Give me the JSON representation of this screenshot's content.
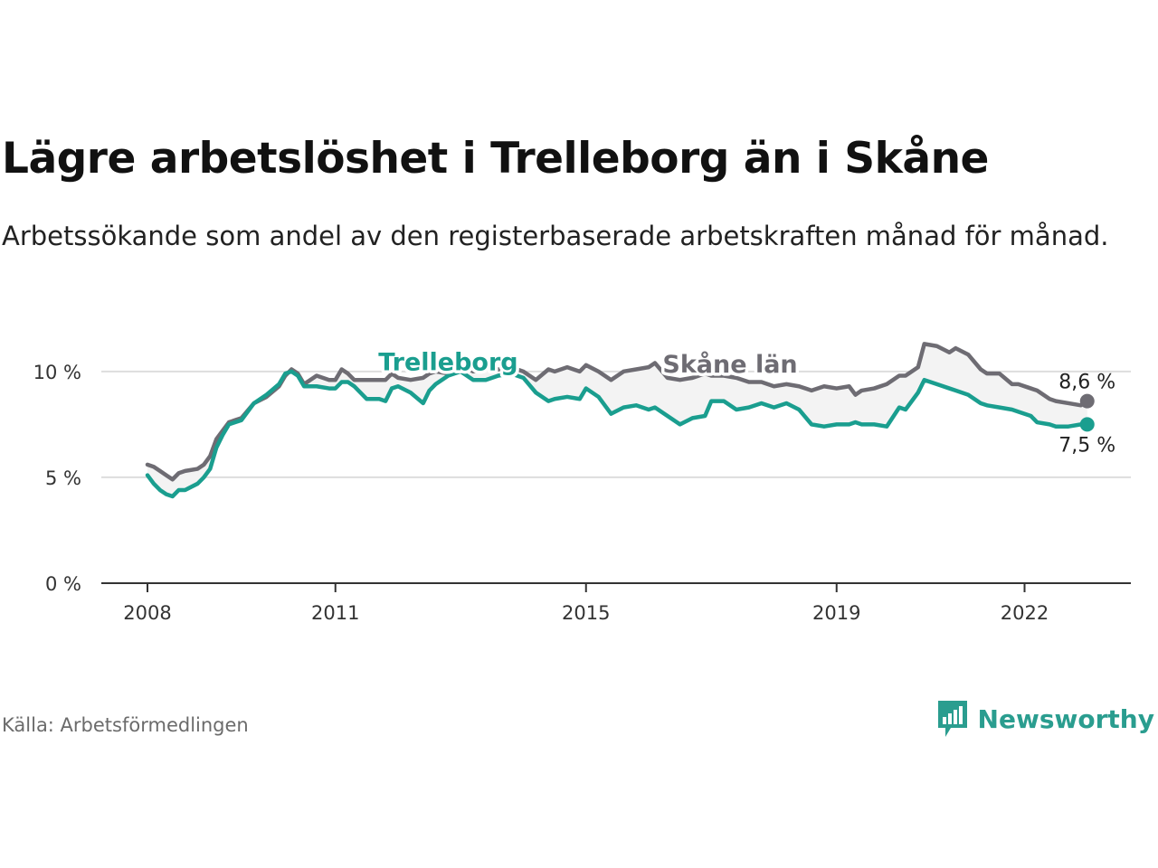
{
  "title": "Lägre arbetslöshet i Trelleborg än i Skåne",
  "subtitle": "Arbetssökande som andel av den registerbaserade arbetskraften månad för månad.",
  "source": "Källa: Arbetsförmedlingen",
  "brand": "Newsworthy",
  "colors": {
    "trelleborg": "#1a9e8f",
    "skane": "#6e6c73",
    "grid": "#dddddd",
    "axis": "#333333",
    "fill": "#f3f3f3"
  },
  "chart_data": {
    "type": "line",
    "ylim": [
      0,
      12
    ],
    "yticks": [
      0,
      5,
      10
    ],
    "ytick_labels": [
      "0 %",
      "5 %",
      "10 %"
    ],
    "xlim": [
      2008.0,
      2023.4
    ],
    "xticks": [
      2008,
      2011,
      2015,
      2019,
      2022
    ],
    "xtick_labels": [
      "2008",
      "2011",
      "2015",
      "2019",
      "2022"
    ],
    "series": [
      {
        "name": "Skåne län",
        "label": "Skåne län",
        "end_label": "8,6 %",
        "x": [
          2008.0,
          2008.1,
          2008.2,
          2008.3,
          2008.4,
          2008.5,
          2008.6,
          2008.8,
          2008.9,
          2009.0,
          2009.1,
          2009.2,
          2009.3,
          2009.4,
          2009.5,
          2009.7,
          2009.9,
          2010.1,
          2010.2,
          2010.3,
          2010.4,
          2010.5,
          2010.7,
          2010.9,
          2011.0,
          2011.1,
          2011.2,
          2011.3,
          2011.5,
          2011.7,
          2011.8,
          2011.9,
          2012.0,
          2012.2,
          2012.4,
          2012.5,
          2012.6,
          2012.8,
          2013.0,
          2013.2,
          2013.4,
          2013.6,
          2013.8,
          2014.0,
          2014.2,
          2014.4,
          2014.5,
          2014.7,
          2014.9,
          2015.0,
          2015.2,
          2015.4,
          2015.6,
          2015.8,
          2016.0,
          2016.1,
          2016.3,
          2016.5,
          2016.7,
          2016.9,
          2017.0,
          2017.2,
          2017.4,
          2017.6,
          2017.8,
          2018.0,
          2018.2,
          2018.4,
          2018.6,
          2018.8,
          2019.0,
          2019.2,
          2019.3,
          2019.4,
          2019.6,
          2019.8,
          2020.0,
          2020.1,
          2020.3,
          2020.4,
          2020.6,
          2020.8,
          2020.9,
          2021.1,
          2021.3,
          2021.4,
          2021.6,
          2021.8,
          2021.9,
          2022.1,
          2022.2,
          2022.4,
          2022.5,
          2022.7,
          2022.9,
          2023.0
        ],
        "y": [
          5.6,
          5.5,
          5.3,
          5.1,
          4.9,
          5.2,
          5.3,
          5.4,
          5.6,
          6.0,
          6.8,
          7.2,
          7.6,
          7.7,
          7.8,
          8.5,
          8.8,
          9.3,
          9.8,
          10.1,
          9.9,
          9.4,
          9.8,
          9.6,
          9.6,
          10.1,
          9.9,
          9.6,
          9.6,
          9.6,
          9.6,
          9.9,
          9.7,
          9.6,
          9.7,
          9.9,
          10.0,
          9.9,
          10.3,
          10.0,
          10.1,
          10.1,
          10.2,
          10.0,
          9.6,
          10.1,
          10.0,
          10.2,
          10.0,
          10.3,
          10.0,
          9.6,
          10.0,
          10.1,
          10.2,
          10.4,
          9.7,
          9.6,
          9.7,
          9.9,
          9.8,
          9.8,
          9.7,
          9.5,
          9.5,
          9.3,
          9.4,
          9.3,
          9.1,
          9.3,
          9.2,
          9.3,
          8.9,
          9.1,
          9.2,
          9.4,
          9.8,
          9.8,
          10.2,
          11.3,
          11.2,
          10.9,
          11.1,
          10.8,
          10.1,
          9.9,
          9.9,
          9.4,
          9.4,
          9.2,
          9.1,
          8.7,
          8.6,
          8.5,
          8.4,
          8.6
        ]
      },
      {
        "name": "Trelleborg",
        "label": "Trelleborg",
        "end_label": "7,5 %",
        "x": [
          2008.0,
          2008.1,
          2008.2,
          2008.3,
          2008.4,
          2008.5,
          2008.6,
          2008.8,
          2008.9,
          2009.0,
          2009.1,
          2009.2,
          2009.3,
          2009.4,
          2009.5,
          2009.7,
          2009.9,
          2010.1,
          2010.2,
          2010.3,
          2010.4,
          2010.5,
          2010.7,
          2010.9,
          2011.0,
          2011.1,
          2011.2,
          2011.3,
          2011.5,
          2011.7,
          2011.8,
          2011.9,
          2012.0,
          2012.2,
          2012.4,
          2012.5,
          2012.6,
          2012.8,
          2013.0,
          2013.2,
          2013.4,
          2013.6,
          2013.8,
          2014.0,
          2014.2,
          2014.4,
          2014.5,
          2014.7,
          2014.9,
          2015.0,
          2015.2,
          2015.4,
          2015.6,
          2015.8,
          2016.0,
          2016.1,
          2016.3,
          2016.5,
          2016.7,
          2016.9,
          2017.0,
          2017.2,
          2017.4,
          2017.6,
          2017.8,
          2018.0,
          2018.2,
          2018.4,
          2018.6,
          2018.8,
          2019.0,
          2019.2,
          2019.3,
          2019.4,
          2019.6,
          2019.8,
          2020.0,
          2020.1,
          2020.3,
          2020.4,
          2020.6,
          2020.8,
          2020.9,
          2021.1,
          2021.3,
          2021.4,
          2021.6,
          2021.8,
          2021.9,
          2022.1,
          2022.2,
          2022.4,
          2022.5,
          2022.7,
          2022.9,
          2023.0
        ],
        "y": [
          5.1,
          4.7,
          4.4,
          4.2,
          4.1,
          4.4,
          4.4,
          4.7,
          5.0,
          5.4,
          6.4,
          7.0,
          7.5,
          7.6,
          7.7,
          8.5,
          8.9,
          9.4,
          9.9,
          10.0,
          9.8,
          9.3,
          9.3,
          9.2,
          9.2,
          9.5,
          9.5,
          9.3,
          8.7,
          8.7,
          8.6,
          9.2,
          9.3,
          9.0,
          8.5,
          9.1,
          9.4,
          9.8,
          10.0,
          9.6,
          9.6,
          9.8,
          9.9,
          9.7,
          9.0,
          8.6,
          8.7,
          8.8,
          8.7,
          9.2,
          8.8,
          8.0,
          8.3,
          8.4,
          8.2,
          8.3,
          7.9,
          7.5,
          7.8,
          7.9,
          8.6,
          8.6,
          8.2,
          8.3,
          8.5,
          8.3,
          8.5,
          8.2,
          7.5,
          7.4,
          7.5,
          7.5,
          7.6,
          7.5,
          7.5,
          7.4,
          8.3,
          8.2,
          9.0,
          9.6,
          9.4,
          9.2,
          9.1,
          8.9,
          8.5,
          8.4,
          8.3,
          8.2,
          8.1,
          7.9,
          7.6,
          7.5,
          7.4,
          7.4,
          7.5,
          7.5
        ]
      }
    ]
  }
}
